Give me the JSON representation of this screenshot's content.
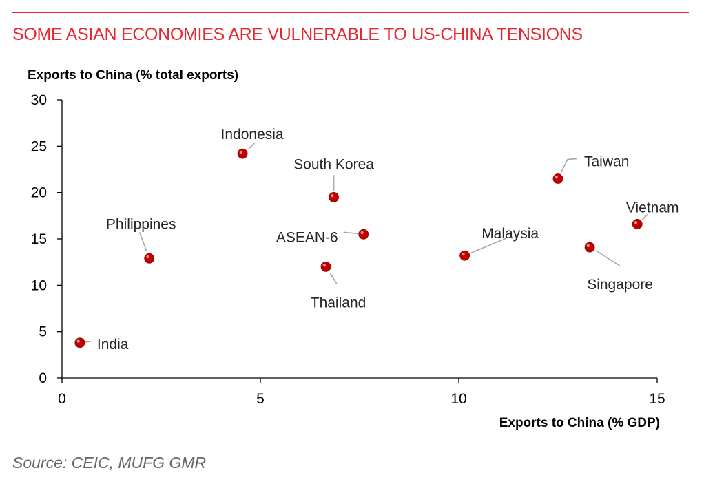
{
  "title": "SOME ASIAN ECONOMIES ARE VULNERABLE TO US-CHINA TENSIONS",
  "source": "Source: CEIC, MUFG GMR",
  "colors": {
    "accent": "#e8262f",
    "marker": "#c00000",
    "leader": "#a6a6a6",
    "text": "#262626",
    "axis": "#000000"
  },
  "chart_data": {
    "type": "scatter",
    "ylabel": "Exports to China (% total exports)",
    "xlabel": "Exports to China (% GDP)",
    "xlim": [
      0,
      15
    ],
    "ylim": [
      0,
      30
    ],
    "xticks": [
      0,
      5,
      10,
      15
    ],
    "yticks": [
      0,
      5,
      10,
      15,
      20,
      25,
      30
    ],
    "grid": false,
    "legend": "none",
    "points": [
      {
        "label": "India",
        "x": 0.45,
        "y": 3.8
      },
      {
        "label": "Philippines",
        "x": 2.2,
        "y": 12.9
      },
      {
        "label": "Indonesia",
        "x": 4.55,
        "y": 24.2
      },
      {
        "label": "South Korea",
        "x": 6.85,
        "y": 19.5
      },
      {
        "label": "ASEAN-6",
        "x": 7.6,
        "y": 15.5
      },
      {
        "label": "Thailand",
        "x": 6.65,
        "y": 12.0
      },
      {
        "label": "Malaysia",
        "x": 10.15,
        "y": 13.2
      },
      {
        "label": "Taiwan",
        "x": 12.5,
        "y": 21.5
      },
      {
        "label": "Singapore",
        "x": 13.3,
        "y": 14.1
      },
      {
        "label": "Vietnam",
        "x": 14.5,
        "y": 16.6
      }
    ]
  }
}
